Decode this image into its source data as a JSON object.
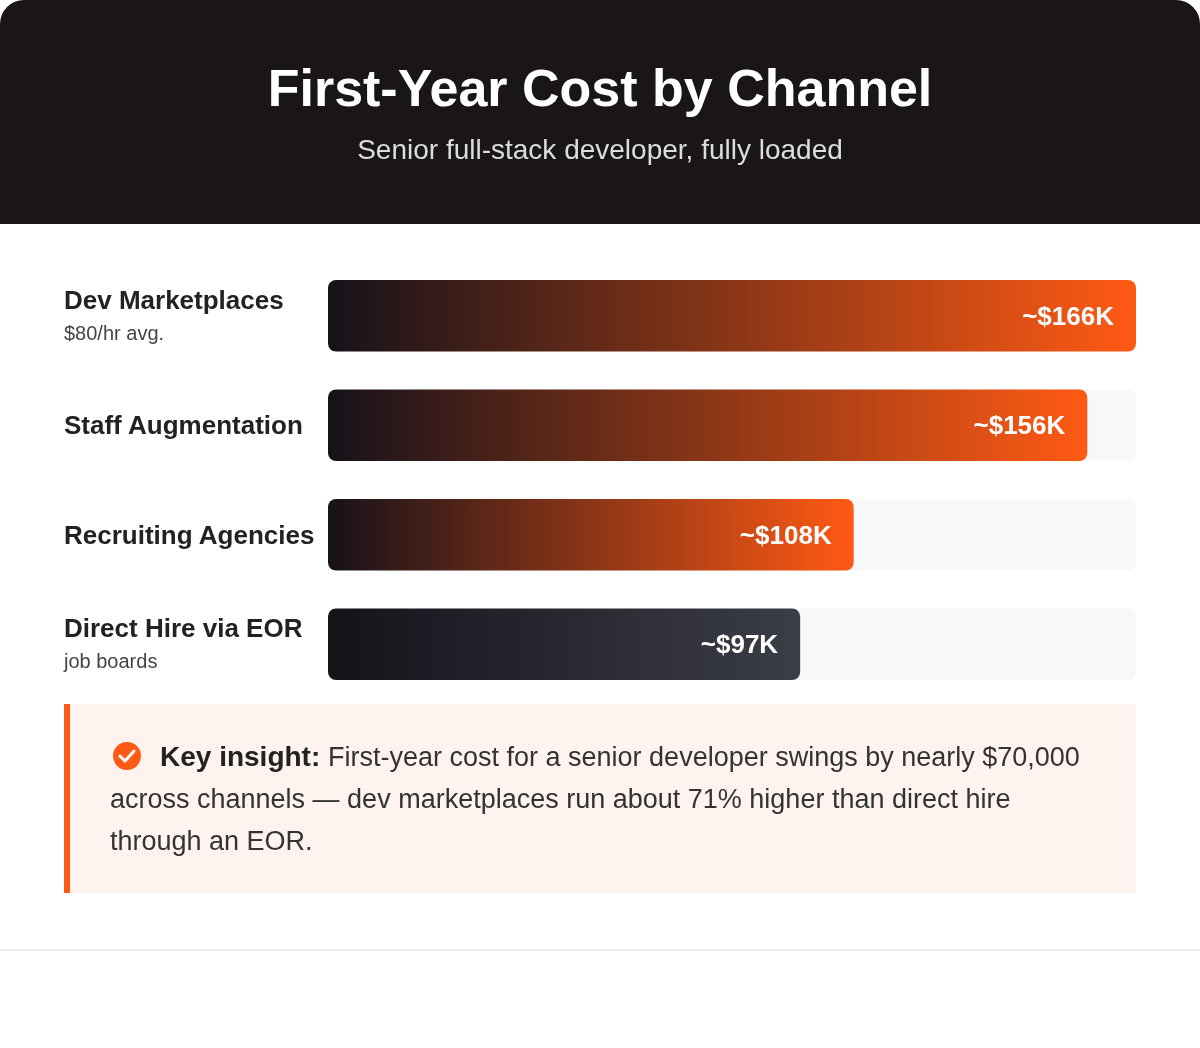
{
  "chart_data": {
    "type": "bar",
    "orientation": "horizontal",
    "title": "First-Year Cost by Channel",
    "subtitle": "Senior full-stack developer, fully loaded",
    "categories": [
      "Dev Marketplaces\n$80/hr avg.",
      "Staff Augmentation",
      "Recruiting Agencies",
      "Direct Hire via EOR\njob boards"
    ],
    "values": [
      166,
      156,
      108,
      97
    ],
    "value_labels": [
      "~$166K",
      "~$156K",
      "~$108K",
      "~$97K"
    ],
    "colors": [
      "#ff5a14",
      "#ff5a14",
      "#ff5a14",
      "#3b3e47"
    ],
    "annotations": [
      "Key insight: First-year cost for a senior developer swings by nearly $70,000 across channels — dev marketplaces run about 71% higher than direct hire through an EOR."
    ]
  }
}
